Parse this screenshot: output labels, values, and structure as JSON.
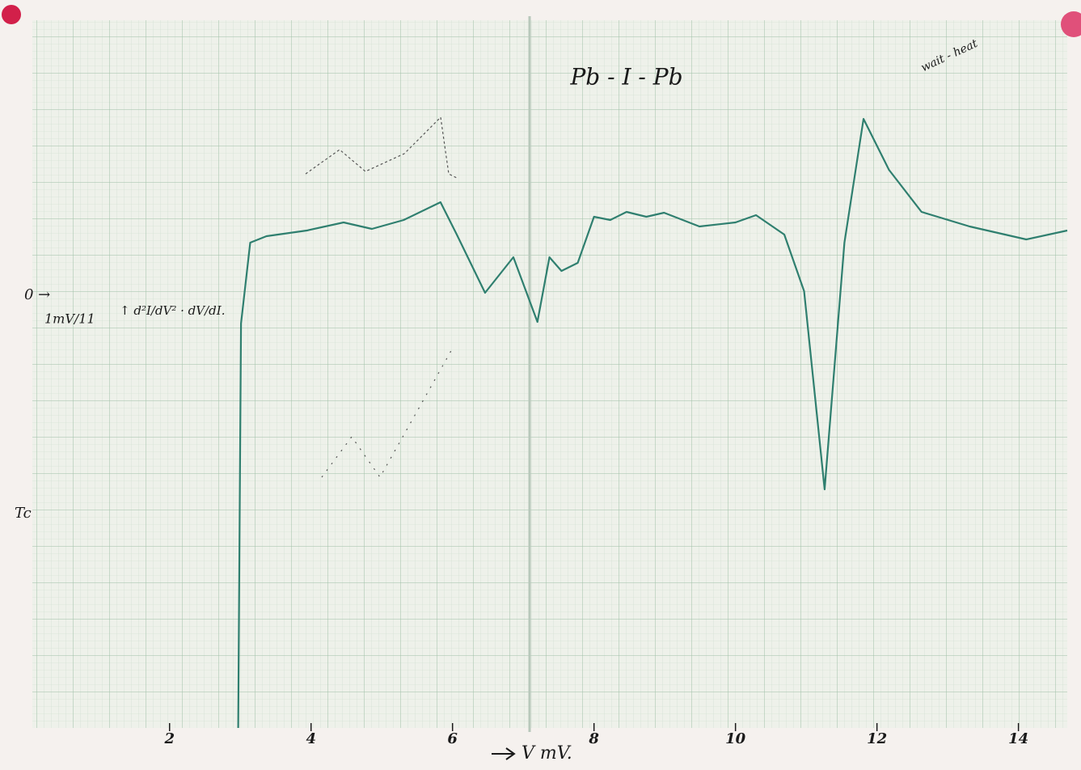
{
  "chart_data": {
    "type": "line",
    "title": "Pb - I - Pb",
    "x_label": "V mV.",
    "annotations": [
      "0 →",
      "1mV/11",
      "↑ d²I/dV² · dV/dI.",
      "wait - heat",
      "Tc"
    ],
    "x": [
      2.97,
      3.01,
      3.14,
      3.37,
      3.94,
      4.46,
      4.86,
      5.31,
      5.83,
      6.06,
      6.46,
      6.86,
      7.2,
      7.37,
      7.54,
      7.77,
      8.0,
      8.23,
      8.46,
      8.74,
      8.99,
      9.49,
      10.0,
      10.29,
      10.69,
      10.97,
      11.26,
      11.54,
      11.81,
      12.17,
      12.63,
      13.31,
      14.11,
      14.69
    ],
    "values": [
      -5.35,
      -0.35,
      0.65,
      0.73,
      0.8,
      0.9,
      0.82,
      0.93,
      1.15,
      0.75,
      0.03,
      0.47,
      -0.33,
      0.47,
      0.3,
      0.4,
      0.97,
      0.93,
      1.03,
      0.97,
      1.02,
      0.85,
      0.9,
      0.99,
      0.75,
      0.05,
      -2.4,
      0.65,
      2.18,
      1.55,
      1.03,
      0.85,
      0.69,
      0.8
    ],
    "color": "#2f7f6f",
    "xlim": [
      0.06,
      14.69
    ],
    "ylim": [
      -5.35,
      3.4
    ],
    "xticks": [
      2,
      4,
      6,
      8,
      10,
      12,
      14
    ]
  }
}
